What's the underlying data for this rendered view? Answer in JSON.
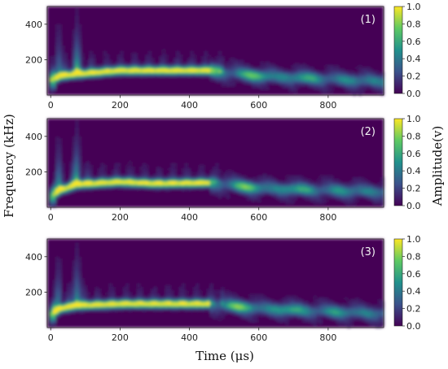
{
  "chart_data": {
    "type": "heatmap",
    "xlabel": "Time  (μs)",
    "ylabel": "Frequency (kHz)",
    "colorbar_label": "Amplitude(v)",
    "x_ticks": [
      "0",
      "200",
      "400",
      "600",
      "800"
    ],
    "y_ticks": [
      "200",
      "400"
    ],
    "colorbar_ticks": [
      "0.0",
      "0.2",
      "0.4",
      "0.6",
      "0.8",
      "1.0"
    ],
    "xlim": [
      -10,
      960
    ],
    "ylim": [
      0,
      500
    ],
    "clim": [
      0,
      1
    ],
    "colormap": [
      "#440154",
      "#3b528b",
      "#21918c",
      "#5ec962",
      "#fde725"
    ],
    "panels": [
      {
        "label": "(1)",
        "dominant_band_khz": [
          130,
          150
        ],
        "strong_band_end_us": 460,
        "peak_time_us": 75,
        "band_profile": [
          {
            "t": 0,
            "f": 80
          },
          {
            "t": 30,
            "f": 110
          },
          {
            "t": 75,
            "f": 120
          },
          {
            "t": 200,
            "f": 140
          },
          {
            "t": 300,
            "f": 140
          },
          {
            "t": 460,
            "f": 140
          },
          {
            "t": 600,
            "f": 110
          },
          {
            "t": 950,
            "f": 80
          }
        ]
      },
      {
        "label": "(2)",
        "dominant_band_khz": [
          125,
          150
        ],
        "strong_band_end_us": 460,
        "peak_time_us": 75,
        "band_profile": [
          {
            "t": 0,
            "f": 60
          },
          {
            "t": 30,
            "f": 100
          },
          {
            "t": 75,
            "f": 130
          },
          {
            "t": 200,
            "f": 145
          },
          {
            "t": 300,
            "f": 135
          },
          {
            "t": 460,
            "f": 140
          },
          {
            "t": 600,
            "f": 110
          },
          {
            "t": 950,
            "f": 90
          }
        ]
      },
      {
        "label": "(3)",
        "dominant_band_khz": [
          125,
          145
        ],
        "strong_band_end_us": 460,
        "peak_time_us": 75,
        "band_profile": [
          {
            "t": 0,
            "f": 70
          },
          {
            "t": 30,
            "f": 110
          },
          {
            "t": 75,
            "f": 125
          },
          {
            "t": 200,
            "f": 135
          },
          {
            "t": 300,
            "f": 135
          },
          {
            "t": 460,
            "f": 135
          },
          {
            "t": 600,
            "f": 110
          },
          {
            "t": 950,
            "f": 80
          }
        ]
      }
    ]
  }
}
